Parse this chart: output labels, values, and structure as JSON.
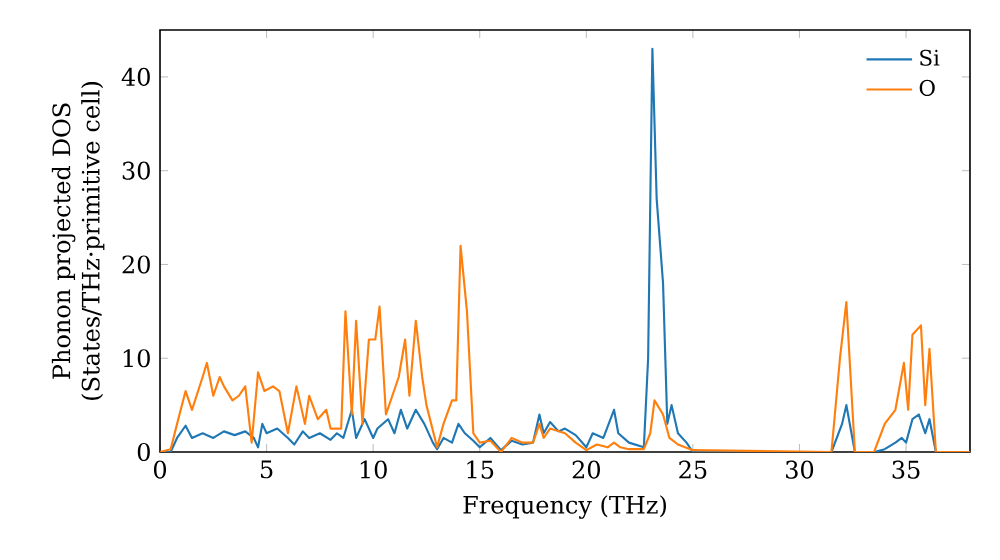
{
  "chart_data": {
    "type": "line",
    "xlabel": "Frequency (THz)",
    "ylabel": "Phonon projected DOS (States/THz·primitive cell)",
    "xlim": [
      0,
      38
    ],
    "ylim": [
      0,
      45
    ],
    "xticks": [
      0,
      5,
      10,
      15,
      20,
      25,
      30,
      35
    ],
    "yticks": [
      0,
      10,
      20,
      30,
      40
    ],
    "legend": "top right",
    "grid": false,
    "marker": "none",
    "line_style": "solid",
    "series": [
      {
        "name": "Si",
        "color": "#1f77b4",
        "x": [
          0,
          0.5,
          0.8,
          1.2,
          1.5,
          2,
          2.5,
          3,
          3.5,
          4,
          4.4,
          4.6,
          4.8,
          5,
          5.5,
          6,
          6.3,
          6.7,
          7,
          7.5,
          8,
          8.3,
          8.6,
          9,
          9.2,
          9.6,
          10,
          10.2,
          10.7,
          11,
          11.3,
          11.6,
          12,
          12.4,
          12.8,
          13,
          13.3,
          13.7,
          14,
          14.3,
          14.7,
          15,
          15.5,
          16,
          16.5,
          17,
          17.5,
          17.8,
          18,
          18.3,
          18.7,
          19,
          19.5,
          20,
          20.3,
          20.8,
          21.3,
          21.5,
          22,
          22.7,
          22.9,
          23.1,
          23.3,
          23.6,
          23.8,
          24,
          24.3,
          24.7,
          25,
          31.5,
          32,
          32.2,
          32.6,
          33.5,
          34,
          34.5,
          34.8,
          35,
          35.3,
          35.6,
          35.9,
          36.1,
          36.4,
          38
        ],
        "values": [
          0,
          0,
          1.5,
          2.8,
          1.5,
          2,
          1.5,
          2.2,
          1.8,
          2.2,
          1.5,
          0.5,
          3,
          2,
          2.5,
          1.5,
          0.8,
          2.2,
          1.5,
          2,
          1.3,
          2,
          1.5,
          4.5,
          1.5,
          3.5,
          1.5,
          2.5,
          3.5,
          2,
          4.5,
          2.5,
          4.5,
          3,
          1,
          0.3,
          1.5,
          1,
          3,
          2,
          1.2,
          0.5,
          1.5,
          0.2,
          1.2,
          0.8,
          1,
          4,
          2,
          3.2,
          2.2,
          2.5,
          1.8,
          0.5,
          2,
          1.5,
          4.5,
          2,
          1,
          0.5,
          10,
          43,
          27,
          18,
          3,
          5,
          2,
          1,
          0,
          0,
          3,
          5,
          0,
          0,
          0.3,
          1,
          1.5,
          1,
          3.5,
          4,
          2,
          3.5,
          0,
          0
        ]
      },
      {
        "name": "O",
        "color": "#ff7f0e",
        "x": [
          0,
          0.5,
          0.8,
          1.2,
          1.5,
          2,
          2.2,
          2.5,
          2.8,
          3,
          3.4,
          3.7,
          4,
          4.3,
          4.6,
          4.9,
          5.3,
          5.6,
          6,
          6.4,
          6.8,
          7,
          7.4,
          7.8,
          8,
          8.5,
          8.7,
          9,
          9.2,
          9.5,
          9.8,
          10.1,
          10.3,
          10.6,
          10.9,
          11.2,
          11.5,
          11.7,
          12,
          12.3,
          12.5,
          13,
          13.3,
          13.7,
          13.9,
          14.1,
          14.4,
          14.7,
          15,
          15.5,
          16,
          16.5,
          17,
          17.5,
          17.8,
          18,
          18.3,
          19,
          19.5,
          20,
          20.5,
          21,
          21.3,
          21.6,
          22,
          22.7,
          23,
          23.2,
          23.6,
          23.9,
          24.3,
          25,
          31.5,
          31.9,
          32.2,
          32.6,
          33.5,
          34,
          34.5,
          34.9,
          35.1,
          35.3,
          35.7,
          35.9,
          36.1,
          36.4,
          38
        ],
        "values": [
          0,
          0.3,
          3,
          6.5,
          4.5,
          8,
          9.5,
          6,
          8,
          7,
          5.5,
          6,
          7,
          1,
          8.5,
          6.5,
          7,
          6.5,
          2,
          7,
          3,
          6,
          3.5,
          4.5,
          2.5,
          2.5,
          15,
          4,
          14,
          3,
          12,
          12,
          15.5,
          4,
          6,
          8,
          12,
          6,
          14,
          8,
          5,
          0.5,
          3,
          5.5,
          5.5,
          22,
          15,
          2,
          1,
          1.2,
          0,
          1.5,
          1,
          1,
          3,
          1.5,
          2.5,
          2,
          1,
          0.2,
          0.8,
          0.5,
          1,
          0.5,
          0.3,
          0.3,
          2,
          5.5,
          4,
          1.5,
          0.8,
          0.2,
          0,
          10,
          16,
          0,
          0,
          3,
          4.5,
          9.5,
          4.5,
          12.5,
          13.5,
          5,
          11,
          0,
          0
        ]
      }
    ]
  }
}
